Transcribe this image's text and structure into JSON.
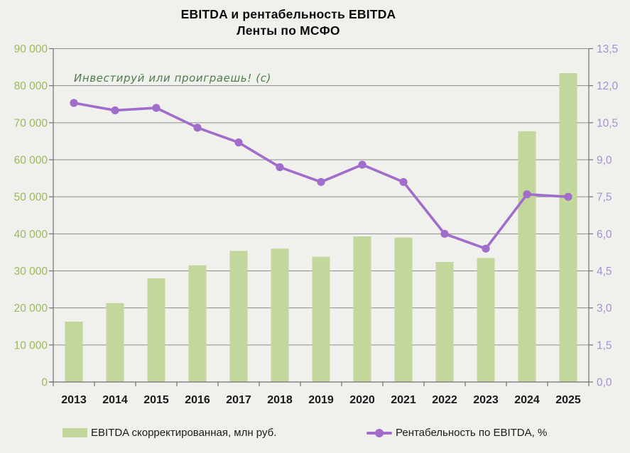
{
  "title": {
    "line1": "EBITDA и рентабельность EBITDA",
    "line2": "Ленты по МСФО"
  },
  "watermark": "Инвестируй или проиграешь! (с)",
  "legend": {
    "bars_label": "EBITDA скорректированная, млн руб.",
    "line_label": "Рентабельность по EBITDA, %"
  },
  "colors": {
    "background": "#f0f0ed",
    "bar_fill": "#c3d69b",
    "line_stroke": "#a06dcb",
    "left_axis_text": "#9bbb59",
    "right_axis_text": "#a58fd0",
    "year_text": "#1a1a1a",
    "grid": "#8c8c8c",
    "axis": "#707070",
    "title_text": "#0d0d0d",
    "watermark_text": "#4e7d4e"
  },
  "chart_data": {
    "type": "bar",
    "title": "EBITDA и рентабельность EBITDA Ленты по МСФО",
    "categories": [
      "2013",
      "2014",
      "2015",
      "2016",
      "2017",
      "2018",
      "2019",
      "2020",
      "2021",
      "2022",
      "2023",
      "2024",
      "2025"
    ],
    "series": [
      {
        "name": "EBITDA скорректированная, млн руб.",
        "type": "bar",
        "axis": "left",
        "values": [
          16300,
          21300,
          28000,
          31500,
          35400,
          36000,
          33800,
          39300,
          39000,
          32400,
          33500,
          67700,
          83400
        ]
      },
      {
        "name": "Рентабельность по EBITDA, %",
        "type": "line",
        "axis": "right",
        "values": [
          11.3,
          11.0,
          11.1,
          10.3,
          9.7,
          8.7,
          8.1,
          8.8,
          8.1,
          6.0,
          5.4,
          7.6,
          7.5
        ]
      }
    ],
    "left_axis": {
      "min": 0,
      "max": 90000,
      "step": 10000,
      "tick_labels": [
        "0",
        "10 000",
        "20 000",
        "30 000",
        "40 000",
        "50 000",
        "60 000",
        "70 000",
        "80 000",
        "90 000"
      ]
    },
    "right_axis": {
      "min": 0,
      "max": 13.5,
      "step": 1.5,
      "tick_labels": [
        "0,0",
        "1,5",
        "3,0",
        "4,5",
        "6,0",
        "7,5",
        "9,0",
        "10,5",
        "12,0",
        "13,5"
      ]
    },
    "grid": true,
    "legend_position": "bottom"
  }
}
